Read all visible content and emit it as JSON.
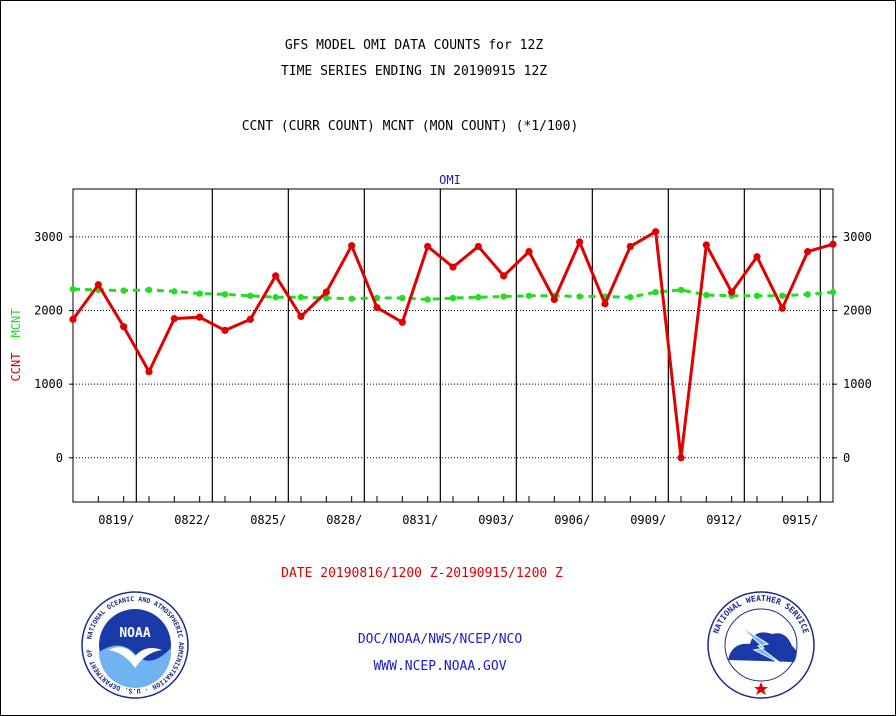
{
  "titles": {
    "line1": "GFS MODEL OMI DATA COUNTS for 12Z",
    "line2": "TIME SERIES ENDING IN 20190915 12Z",
    "line3": "CCNT (CURR COUNT) MCNT (MON COUNT) (*1/100)"
  },
  "footer": {
    "date_range": "DATE 20190816/1200 Z-20190915/1200 Z",
    "org": "DOC/NOAA/NWS/NCEP/NCO",
    "url": "WWW.NCEP.NOAA.GOV",
    "noaa_logo_text": "NOAA",
    "noaa_ring_text": "NATIONAL OCEANIC AND ATMOSPHERIC ADMINISTRATION · U.S. DEPARTMENT OF COMMERCE",
    "nws_ring_text": "NATIONAL WEATHER SERVICE"
  },
  "colors": {
    "ccnt": "#e00000",
    "mcnt": "#22dd22",
    "subtitle": "#1a1acd",
    "axis": "#000000"
  },
  "chart_data": {
    "type": "line",
    "subtitle": "OMI",
    "ylabel_left": "CCNT",
    "ylabel_right": "MCNT",
    "ylim": [
      -600,
      3650
    ],
    "xlim": [
      0,
      30
    ],
    "y_ticks": [
      0,
      1000,
      2000,
      3000
    ],
    "y_tick_labels": [
      "0",
      "1000",
      "2000",
      "3000"
    ],
    "x_ticks": [
      2.5,
      5.5,
      8.5,
      11.5,
      14.5,
      17.5,
      20.5,
      23.5,
      26.5,
      29.5
    ],
    "x_tick_labels": [
      "0819/",
      "0822/",
      "0825/",
      "0828/",
      "0831/",
      "0903/",
      "0906/",
      "0909/",
      "0912/",
      "0915/"
    ],
    "grid": true,
    "series": [
      {
        "name": "CCNT",
        "x": [
          0,
          1,
          2,
          3,
          4,
          5,
          6,
          7,
          8,
          9,
          10,
          11,
          12,
          13,
          14,
          15,
          16,
          17,
          18,
          19,
          20,
          21,
          22,
          23,
          24,
          25,
          26,
          27,
          28,
          29,
          30
        ],
        "values": [
          1880,
          2350,
          1780,
          1170,
          1890,
          1910,
          1730,
          1880,
          2470,
          1920,
          2250,
          2880,
          2040,
          1840,
          2870,
          2590,
          2870,
          2470,
          2800,
          2150,
          2930,
          2090,
          2870,
          3070,
          0,
          2890,
          2250,
          2730,
          2030,
          2800,
          2900
        ]
      },
      {
        "name": "MCNT",
        "x": [
          0,
          1,
          2,
          3,
          4,
          5,
          6,
          7,
          8,
          9,
          10,
          11,
          12,
          13,
          14,
          15,
          16,
          17,
          18,
          19,
          20,
          21,
          22,
          23,
          24,
          25,
          26,
          27,
          28,
          29,
          30
        ],
        "values": [
          2290,
          2280,
          2270,
          2280,
          2260,
          2230,
          2220,
          2200,
          2180,
          2180,
          2170,
          2160,
          2170,
          2170,
          2150,
          2170,
          2180,
          2190,
          2200,
          2200,
          2190,
          2190,
          2180,
          2250,
          2280,
          2210,
          2200,
          2200,
          2200,
          2220,
          2250
        ]
      }
    ]
  }
}
